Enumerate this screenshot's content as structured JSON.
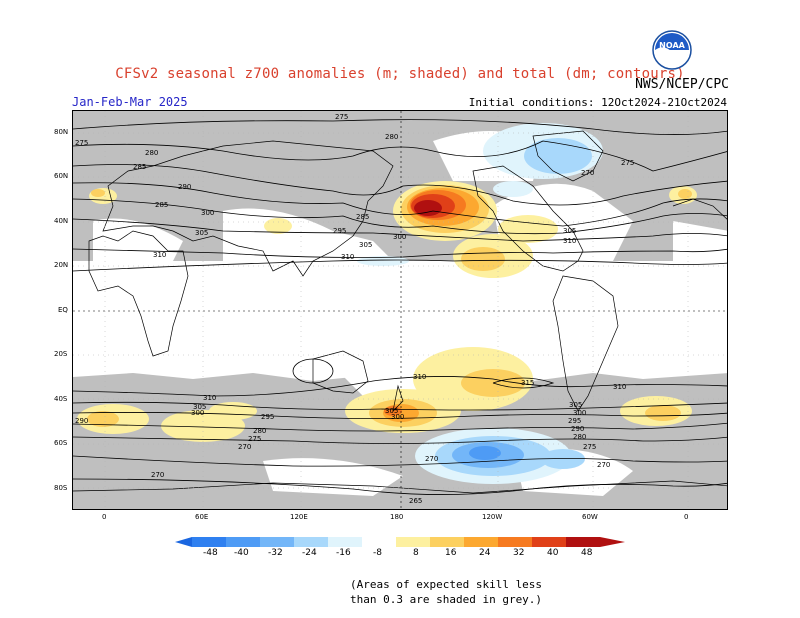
{
  "header": {
    "title": "CFSv2 seasonal z700 anomalies (m; shaded) and total (dm; contours)",
    "agency": "NWS/NCEP/CPC",
    "season": "Jan-Feb-Mar 2025",
    "initial_conditions": "Initial conditions: 12Oct2024-21Oct2024",
    "logo_text": "NOAA"
  },
  "map": {
    "lat_labels": [
      "80N",
      "60N",
      "40N",
      "20N",
      "EQ",
      "20S",
      "40S",
      "60S",
      "80S"
    ],
    "lon_labels": [
      "0",
      "60E",
      "120E",
      "180",
      "120W",
      "60W",
      "0"
    ],
    "contour_labels": [
      "275",
      "280",
      "285",
      "290",
      "295",
      "300",
      "305",
      "310",
      "315",
      "270",
      "265"
    ],
    "grey_meaning": "low skill",
    "colors": {
      "grey": "#bfbfbf",
      "land": "#ffffff"
    }
  },
  "colorbar": {
    "ticks": [
      "-48",
      "-40",
      "-32",
      "-24",
      "-16",
      "-8",
      "8",
      "16",
      "24",
      "32",
      "40",
      "48"
    ],
    "colors": [
      "#1a66e0",
      "#2f80f0",
      "#4e9bf5",
      "#73b6f8",
      "#a8d8fb",
      "#e0f4fc",
      "#ffffff",
      "#fdf0a0",
      "#fcd060",
      "#fca830",
      "#f67a20",
      "#e04018",
      "#b01010"
    ]
  },
  "note": {
    "line1": "(Areas of expected skill less",
    "line2": "than 0.3 are shaded in grey.)"
  }
}
